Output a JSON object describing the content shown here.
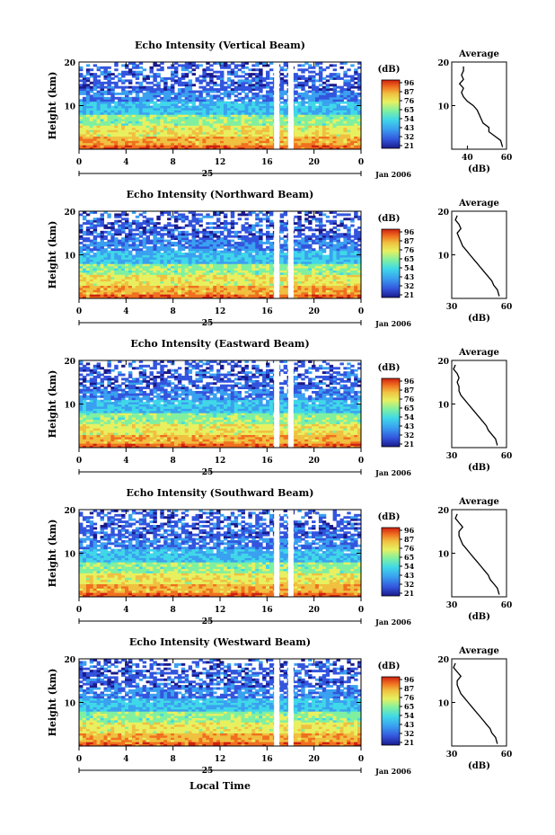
{
  "figure": {
    "xlabel": "Local Time",
    "x_ticks": [
      "0",
      "4",
      "8",
      "12",
      "16",
      "20",
      "0"
    ],
    "day_label": "25",
    "date_label": "Jan 2006",
    "y_axis_label": "Height (km)",
    "y_ticks": [
      "20",
      "10"
    ],
    "colorbar_unit": "(dB)",
    "avg_title": "Average",
    "avg_xlabel": "(dB)"
  },
  "colors": {
    "scale": [
      "#1a1a8c",
      "#3355dd",
      "#3aa0f0",
      "#40d8e8",
      "#80f0a0",
      "#e8f060",
      "#f0c040",
      "#f07020",
      "#d02010"
    ]
  },
  "chart_data": [
    {
      "type": "heatmap",
      "title": "Echo Intensity (Vertical Beam)",
      "ylabel": "Height (km)",
      "xlabel": "Local Time",
      "xlim": [
        0,
        24
      ],
      "ylim": [
        0,
        20
      ],
      "colorbar_ticks": [
        "96",
        "87",
        "76",
        "65",
        "54",
        "43",
        "32",
        "21"
      ],
      "profile": {
        "xlabel": "(dB)",
        "xticks": [
          "40",
          "60"
        ],
        "xlim": [
          32,
          60
        ],
        "heights": [
          0.5,
          2,
          3,
          4,
          5,
          6,
          7,
          8,
          9,
          10,
          11,
          12,
          13,
          14,
          15,
          16,
          17,
          18,
          19
        ],
        "values": [
          58,
          57,
          54,
          51,
          51,
          48,
          47,
          46,
          45,
          43,
          40,
          38,
          37,
          38,
          36,
          38,
          37,
          38,
          38
        ]
      }
    },
    {
      "type": "heatmap",
      "title": "Echo Intensity (Northward Beam)",
      "ylabel": "Height (km)",
      "xlabel": "Local Time",
      "xlim": [
        0,
        24
      ],
      "ylim": [
        0,
        20
      ],
      "colorbar_ticks": [
        "96",
        "87",
        "76",
        "65",
        "54",
        "43",
        "32",
        "21"
      ],
      "profile": {
        "xlabel": "(dB)",
        "xticks": [
          "30",
          "60"
        ],
        "xlim": [
          30,
          60
        ],
        "heights": [
          0.5,
          2,
          3,
          4,
          5,
          6,
          7,
          8,
          9,
          10,
          11,
          12,
          13,
          14,
          15,
          16,
          17,
          18,
          19
        ],
        "values": [
          56,
          55,
          53,
          52,
          50,
          48,
          46,
          44,
          42,
          40,
          38,
          36,
          35,
          34,
          33,
          35,
          34,
          32,
          33
        ]
      }
    },
    {
      "type": "heatmap",
      "title": "Echo Intensity (Eastward Beam)",
      "ylabel": "Height (km)",
      "xlabel": "Local Time",
      "xlim": [
        0,
        24
      ],
      "ylim": [
        0,
        20
      ],
      "colorbar_ticks": [
        "96",
        "87",
        "76",
        "65",
        "54",
        "43",
        "32",
        "21"
      ],
      "profile": {
        "xlabel": "(dB)",
        "xticks": [
          "30",
          "60"
        ],
        "xlim": [
          30,
          60
        ],
        "heights": [
          0.5,
          2,
          3,
          4,
          5,
          6,
          7,
          8,
          9,
          10,
          11,
          12,
          13,
          14,
          15,
          16,
          17,
          18,
          19
        ],
        "values": [
          55,
          54,
          52,
          50,
          49,
          47,
          45,
          43,
          41,
          39,
          37,
          35,
          34,
          34,
          33,
          34,
          33,
          31,
          32
        ]
      }
    },
    {
      "type": "heatmap",
      "title": "Echo Intensity (Southward Beam)",
      "ylabel": "Height (km)",
      "xlabel": "Local Time",
      "xlim": [
        0,
        24
      ],
      "ylim": [
        0,
        20
      ],
      "colorbar_ticks": [
        "96",
        "87",
        "76",
        "65",
        "54",
        "43",
        "32",
        "21"
      ],
      "profile": {
        "xlabel": "(dB)",
        "xticks": [
          "30",
          "60"
        ],
        "xlim": [
          30,
          60
        ],
        "heights": [
          0.5,
          2,
          3,
          4,
          5,
          6,
          7,
          8,
          9,
          10,
          11,
          12,
          13,
          14,
          15,
          16,
          17,
          18,
          19
        ],
        "values": [
          56,
          55,
          53,
          51,
          50,
          48,
          46,
          44,
          42,
          40,
          38,
          36,
          35,
          34,
          34,
          36,
          34,
          32,
          33
        ]
      }
    },
    {
      "type": "heatmap",
      "title": "Echo Intensity (Westward Beam)",
      "ylabel": "Height (km)",
      "xlabel": "Local Time",
      "xlim": [
        0,
        24
      ],
      "ylim": [
        0,
        20
      ],
      "colorbar_ticks": [
        "96",
        "87",
        "76",
        "65",
        "54",
        "43",
        "32",
        "21"
      ],
      "profile": {
        "xlabel": "(dB)",
        "xticks": [
          "30",
          "60"
        ],
        "xlim": [
          30,
          60
        ],
        "heights": [
          0.5,
          2,
          3,
          4,
          5,
          6,
          7,
          8,
          9,
          10,
          11,
          12,
          13,
          14,
          15,
          16,
          17,
          18,
          19
        ],
        "values": [
          55,
          54,
          52,
          51,
          49,
          47,
          45,
          43,
          41,
          39,
          37,
          35,
          34,
          33,
          33,
          35,
          33,
          31,
          32
        ]
      }
    }
  ]
}
